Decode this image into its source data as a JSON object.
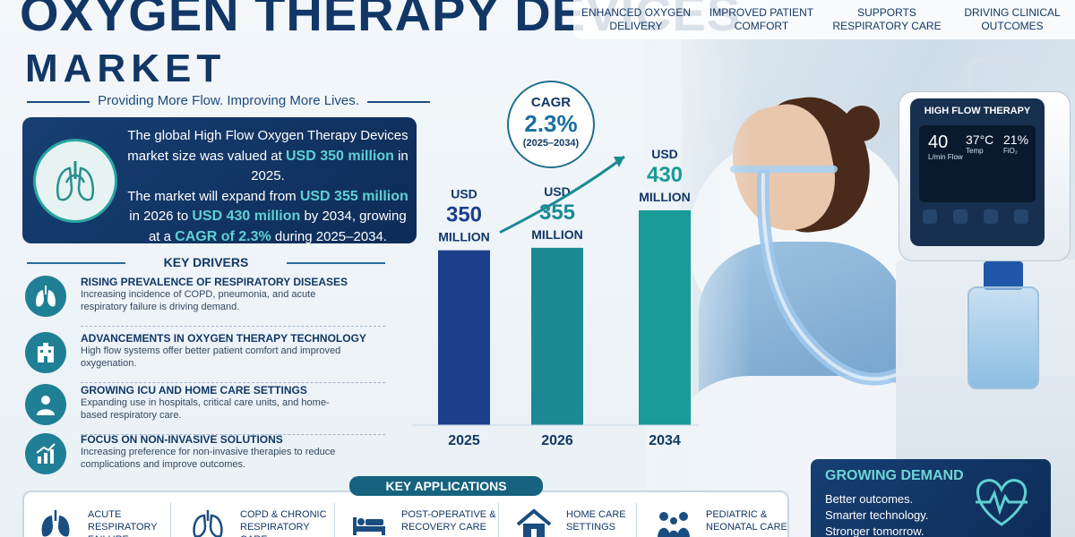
{
  "title": {
    "line1": "OXYGEN THERAPY DEVICES",
    "line2": "MARKET"
  },
  "tagline": "Providing More Flow. Improving More Lives.",
  "benefits": [
    "ENHANCED OXYGEN DELIVERY",
    "IMPROVED PATIENT COMFORT",
    "SUPPORTS RESPIRATORY CARE",
    "DRIVING CLINICAL OUTCOMES"
  ],
  "summary": {
    "p1_a": "The global High Flow Oxygen Therapy Devices market size was valued at ",
    "p1_hl": "USD 350 million",
    "p1_b": " in 2025.",
    "p2_a": "The market will expand from ",
    "p2_hl1": "USD 355 million",
    "p2_b": " in 2026 to ",
    "p2_hl2": "USD 430 million",
    "p2_c": " by 2034, growing at a ",
    "p2_hl3": "CAGR of 2.3%",
    "p2_d": " during 2025–2034."
  },
  "drivers": {
    "heading": "KEY DRIVERS",
    "items": [
      {
        "title": "RISING PREVALENCE OF RESPIRATORY DISEASES",
        "desc": "Increasing incidence of COPD, pneumonia, and acute respiratory failure is driving demand.",
        "icon": "lungs-icon"
      },
      {
        "title": "ADVANCEMENTS IN OXYGEN THERAPY TECHNOLOGY",
        "desc": "High flow systems offer better patient comfort and improved oxygenation.",
        "icon": "hospital-icon"
      },
      {
        "title": "GROWING ICU AND HOME CARE SETTINGS",
        "desc": "Expanding use in hospitals, critical care units, and home-based respiratory care.",
        "icon": "person-icon"
      },
      {
        "title": "FOCUS ON NON-INVASIVE SOLUTIONS",
        "desc": "Increasing preference for non-invasive therapies to reduce complications and improve outcomes.",
        "icon": "growth-chart-icon"
      }
    ]
  },
  "cagr": {
    "label": "CAGR",
    "value": "2.3%",
    "period": "(2025–2034)"
  },
  "chart_data": {
    "type": "bar",
    "categories": [
      "2025",
      "2026",
      "2034"
    ],
    "values": [
      350,
      355,
      430
    ],
    "value_labels": [
      [
        "USD",
        "350",
        "MILLION"
      ],
      [
        "USD",
        "355",
        "MILLION"
      ],
      [
        "USD",
        "430",
        "MILLION"
      ]
    ],
    "unit": "USD million",
    "colors": [
      "#1c3f8c",
      "#1b8a94",
      "#1a9a98"
    ],
    "title": "",
    "xlabel": "",
    "ylabel": ""
  },
  "device": {
    "label": "HIGH FLOW THERAPY",
    "readouts": [
      {
        "value": "40",
        "label": "L/min Flow"
      },
      {
        "value": "37°C",
        "label": "Temp"
      },
      {
        "value": "21%",
        "label": "FiO₂"
      }
    ]
  },
  "demand": {
    "heading": "GROWING DEMAND",
    "lines": [
      "Better outcomes.",
      "Smarter technology.",
      "Stronger tomorrow."
    ]
  },
  "applications": {
    "heading": "KEY APPLICATIONS",
    "items": [
      {
        "label": "ACUTE RESPIRATORY FAILURE",
        "icon": "lungs-icon"
      },
      {
        "label": "COPD & CHRONIC RESPIRATORY CARE",
        "icon": "lungs-icon"
      },
      {
        "label": "POST-OPERATIVE & RECOVERY CARE",
        "icon": "bed-icon"
      },
      {
        "label": "HOME CARE SETTINGS",
        "icon": "home-icon"
      },
      {
        "label": "PEDIATRIC & NEONATAL CARE",
        "icon": "family-icon"
      }
    ]
  },
  "colors": {
    "navy": "#123766",
    "teal": "#1b8a94",
    "accent": "#5fd0d2"
  }
}
